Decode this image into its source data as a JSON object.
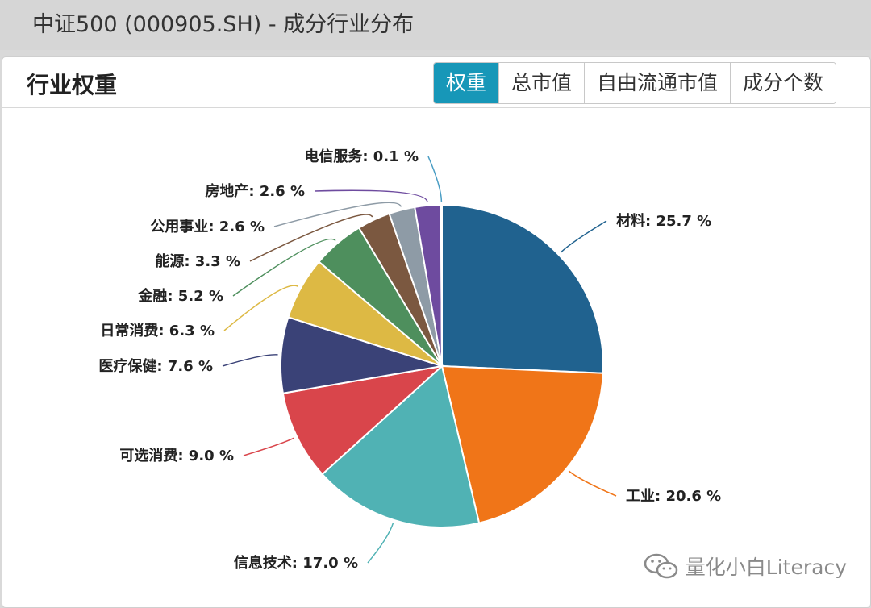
{
  "window": {
    "title": "中证500 (000905.SH) - 成分行业分布"
  },
  "panel": {
    "title": "行业权重",
    "tabs": [
      {
        "label": "权重",
        "active": true
      },
      {
        "label": "总市值",
        "active": false
      },
      {
        "label": "自由流通市值",
        "active": false
      },
      {
        "label": "成分个数",
        "active": false
      }
    ]
  },
  "watermark": {
    "text": "量化小白Literacy",
    "icon": "wechat-icon"
  },
  "chart_data": {
    "type": "pie",
    "title": "",
    "categories": [
      "材料",
      "工业",
      "信息技术",
      "可选消费",
      "医疗保健",
      "日常消费",
      "金融",
      "能源",
      "公用事业",
      "房地产",
      "电信服务"
    ],
    "values": [
      25.7,
      20.6,
      17.0,
      9.0,
      7.6,
      6.3,
      5.2,
      3.3,
      2.6,
      2.6,
      0.1
    ],
    "labels": [
      "材料: 25.7 %",
      "工业: 20.6 %",
      "信息技术: 17.0 %",
      "可选消费: 9.0 %",
      "医疗保健: 7.6 %",
      "日常消费: 6.3 %",
      "金融: 5.2 %",
      "能源: 3.3 %",
      "公用事业: 2.6 %",
      "房地产: 2.6 %",
      "电信服务: 0.1 %"
    ],
    "colors": [
      "#20628f",
      "#f07518",
      "#50b2b4",
      "#d9454b",
      "#3a4277",
      "#ddb944",
      "#4e8f5d",
      "#7b5840",
      "#8e9ba6",
      "#6e4b9f",
      "#4a9dc4"
    ],
    "start_angle": "12 o'clock",
    "direction": "clockwise",
    "legend": "none"
  }
}
